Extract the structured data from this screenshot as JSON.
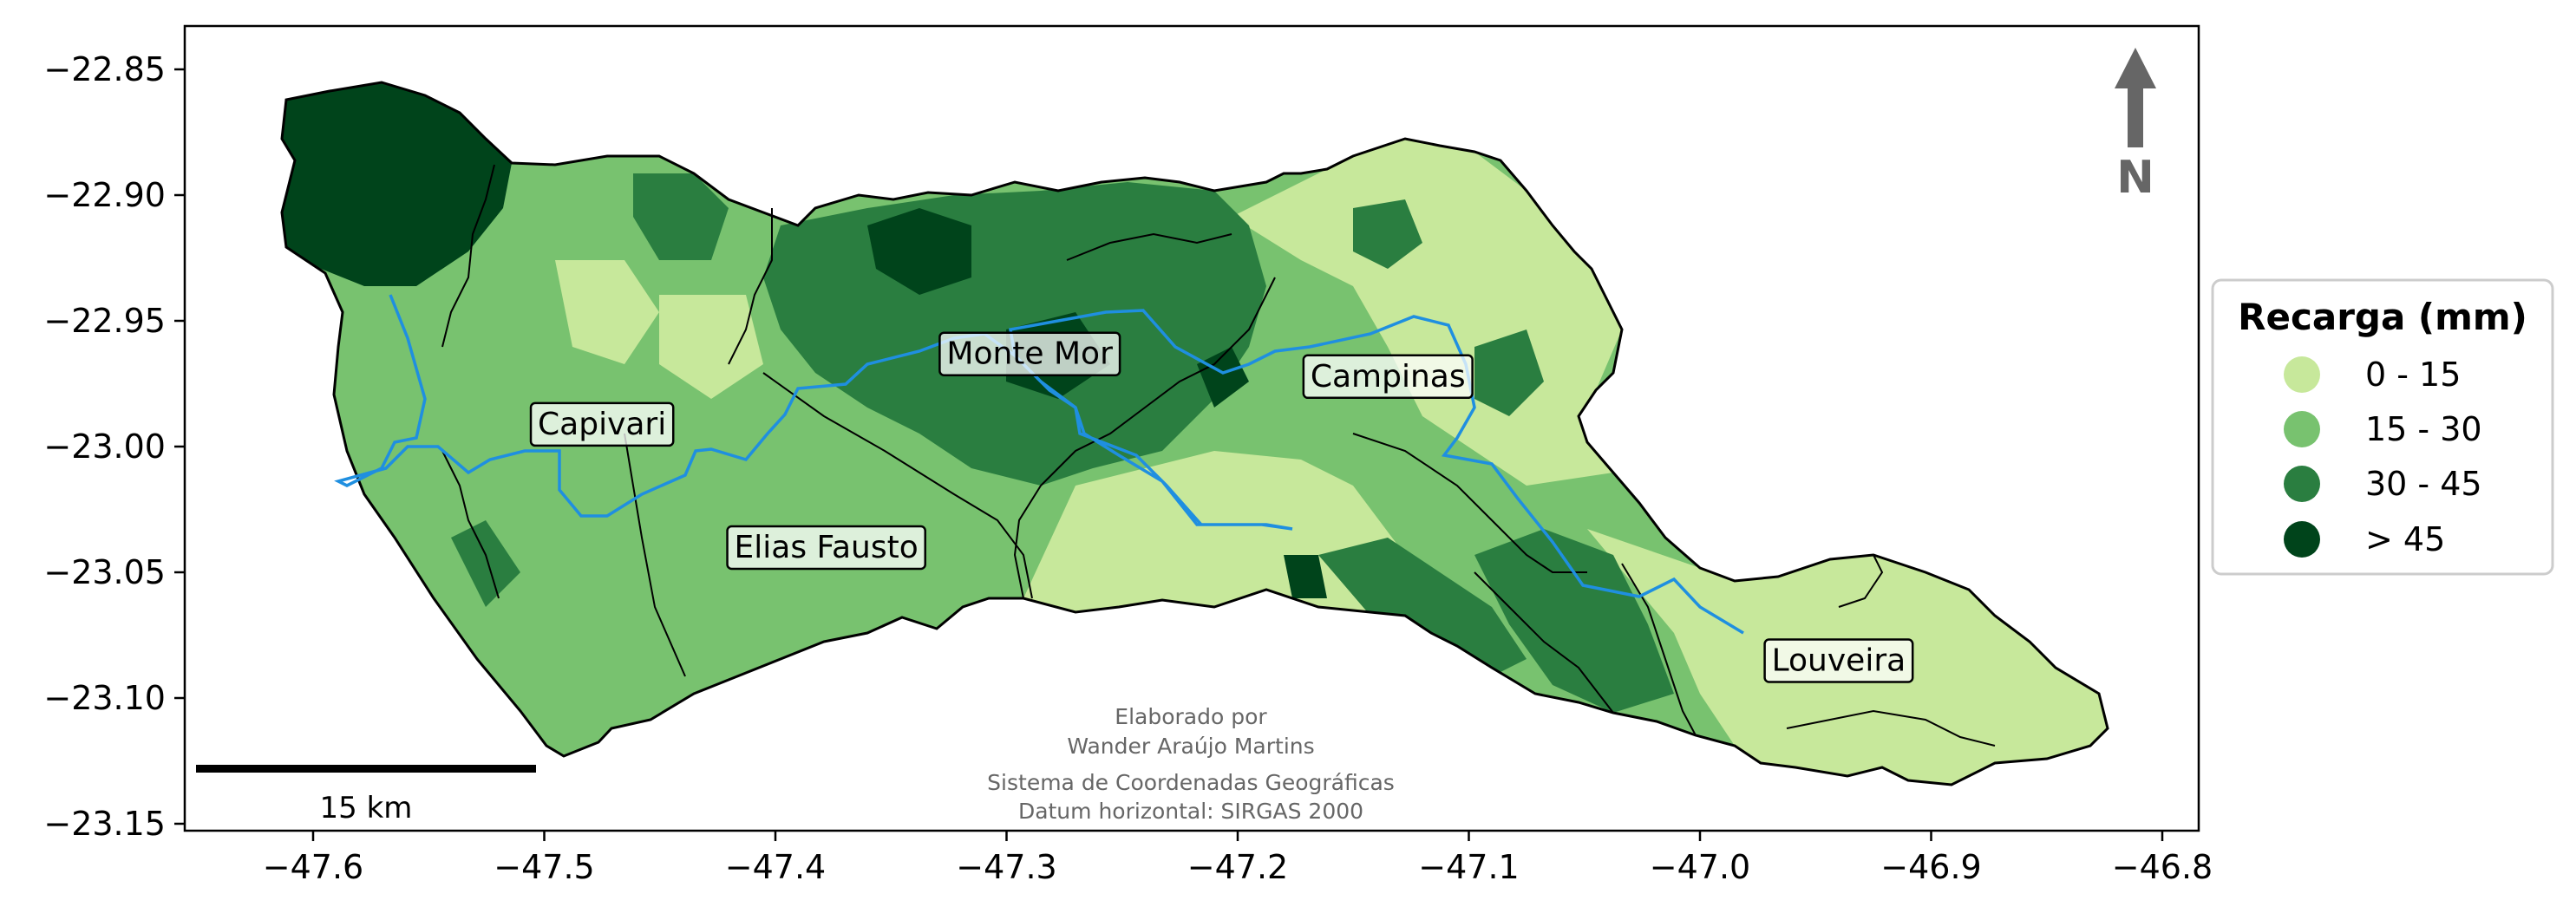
{
  "map": {
    "x_ticks": [
      "−47.6",
      "−47.5",
      "−47.4",
      "−47.3",
      "−47.2",
      "−47.1",
      "−47.0",
      "−46.9",
      "−46.8"
    ],
    "y_ticks": [
      "−22.85",
      "−22.90",
      "−22.95",
      "−23.00",
      "−23.05",
      "−23.10",
      "−23.15"
    ],
    "places": [
      {
        "name": "Monte Mor",
        "lon": -47.29,
        "lat": -22.963
      },
      {
        "name": "Capivari",
        "lon": -47.475,
        "lat": -22.991
      },
      {
        "name": "Campinas",
        "lon": -47.135,
        "lat": -22.972
      },
      {
        "name": "Elias Fausto",
        "lon": -47.378,
        "lat": -23.04
      },
      {
        "name": "Louveira",
        "lon": -46.94,
        "lat": -23.085
      }
    ],
    "north_arrow": "N",
    "scale_bar": "15 km",
    "credits": {
      "line1": "Elaborado por",
      "line2": "Wander Araújo Martins",
      "line3": "Sistema de Coordenadas Geográficas",
      "line4": "Datum horizontal: SIRGAS 2000"
    },
    "colors": {
      "class_0_15": "#c7e89b",
      "class_15_30": "#78c26f",
      "class_30_45": "#2a7e40",
      "class_gt_45": "#00441b",
      "river": "#1f8fe0",
      "boundary": "#000000"
    }
  },
  "legend": {
    "title": "Recarga (mm)",
    "items": [
      {
        "label": "0 - 15",
        "color": "#c7e89b"
      },
      {
        "label": "15 - 30",
        "color": "#78c26f"
      },
      {
        "label": "30 - 45",
        "color": "#2a7e40"
      },
      {
        "label": "> 45",
        "color": "#00441b"
      }
    ]
  }
}
